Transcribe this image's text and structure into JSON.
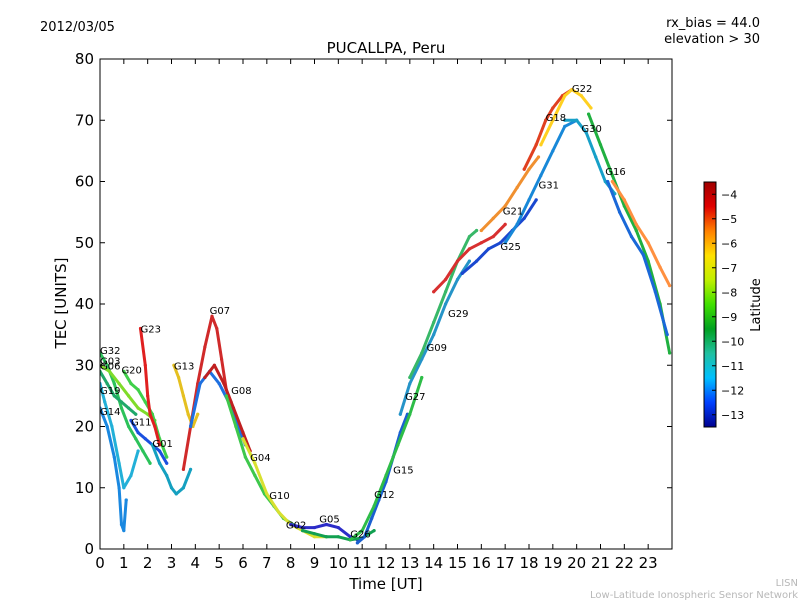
{
  "header": {
    "date": "2012/03/05",
    "rx_bias": "rx_bias = 44.0",
    "elevation": "elevation > 30"
  },
  "footer": {
    "org_short": "LISN",
    "org_long": "Low-Latitude Ionospheric Sensor Network"
  },
  "chart_data": {
    "type": "scatter",
    "title": "PUCALLPA, Peru",
    "xlabel": "Time [UT]",
    "ylabel": "TEC [UNITS]",
    "xlim": [
      0,
      24
    ],
    "ylim": [
      0,
      80
    ],
    "x_ticks": [
      0,
      1,
      2,
      3,
      4,
      5,
      6,
      7,
      8,
      9,
      10,
      11,
      12,
      13,
      14,
      15,
      16,
      17,
      18,
      19,
      20,
      21,
      22,
      23
    ],
    "y_ticks": [
      0,
      10,
      20,
      30,
      40,
      50,
      60,
      70,
      80
    ],
    "grid": false,
    "colorbar": {
      "label": "Latitude",
      "min": -13.5,
      "max": -3.5,
      "ticks": [
        -4,
        -5,
        -6,
        -7,
        -8,
        -9,
        -10,
        -11,
        -12,
        -13
      ],
      "tick_labels": [
        "−4",
        "−5",
        "−6",
        "−7",
        "−8",
        "−9",
        "−10",
        "−11",
        "−12",
        "−13"
      ],
      "colormap": [
        "#00008f",
        "#0040ff",
        "#00c0ff",
        "#20c0a0",
        "#00a020",
        "#40e000",
        "#c0f000",
        "#ffe000",
        "#ff8000",
        "#e00000",
        "#a00000"
      ]
    },
    "series": [
      {
        "name": "G32",
        "label_at": [
          0.0,
          32.5
        ],
        "color": "#2cc25a",
        "points": [
          [
            0.0,
            32
          ],
          [
            0.3,
            30
          ],
          [
            0.6,
            27
          ],
          [
            0.9,
            23
          ],
          [
            1.2,
            20
          ],
          [
            1.5,
            18
          ],
          [
            1.8,
            16
          ],
          [
            2.1,
            14
          ]
        ]
      },
      {
        "name": "G03",
        "label_at": [
          0.0,
          30.8
        ],
        "color": "#7fdc2a",
        "points": [
          [
            0.0,
            30
          ],
          [
            0.4,
            29
          ],
          [
            0.8,
            27
          ],
          [
            1.2,
            25
          ],
          [
            1.6,
            23
          ],
          [
            2.0,
            22
          ],
          [
            2.3,
            21
          ]
        ]
      },
      {
        "name": "G06",
        "label_at": [
          0.0,
          30.0
        ],
        "color": "#1fa86a",
        "points": [
          [
            0.0,
            29
          ],
          [
            0.3,
            27
          ],
          [
            0.6,
            25
          ],
          [
            0.9,
            24
          ],
          [
            1.2,
            23
          ],
          [
            1.5,
            22
          ]
        ]
      },
      {
        "name": "G19",
        "label_at": [
          0.0,
          26.0
        ],
        "color": "#22b0d8",
        "points": [
          [
            0.0,
            27
          ],
          [
            0.2,
            24
          ],
          [
            0.5,
            20
          ],
          [
            0.8,
            14
          ],
          [
            1.0,
            10
          ],
          [
            1.3,
            12
          ],
          [
            1.6,
            16
          ]
        ]
      },
      {
        "name": "G14",
        "label_at": [
          0.0,
          22.5
        ],
        "color": "#1a88e0",
        "points": [
          [
            0.0,
            23
          ],
          [
            0.3,
            20
          ],
          [
            0.6,
            15
          ],
          [
            0.8,
            10
          ],
          [
            0.9,
            4
          ],
          [
            1.0,
            3
          ],
          [
            1.1,
            8
          ]
        ]
      },
      {
        "name": "G20",
        "label_at": [
          0.9,
          29.3
        ],
        "color": "#3fd04a",
        "points": [
          [
            1.0,
            29
          ],
          [
            1.3,
            27
          ],
          [
            1.6,
            26
          ],
          [
            1.9,
            24
          ],
          [
            2.2,
            22
          ],
          [
            2.5,
            18
          ],
          [
            2.8,
            15
          ]
        ]
      },
      {
        "name": "G23",
        "label_at": [
          1.7,
          36.0
        ],
        "color": "#e02020",
        "points": [
          [
            1.7,
            36
          ],
          [
            1.9,
            30
          ],
          [
            2.0,
            25
          ],
          [
            2.1,
            22
          ],
          [
            2.3,
            20
          ],
          [
            2.5,
            17
          ]
        ]
      },
      {
        "name": "G11",
        "label_at": [
          1.3,
          20.8
        ],
        "color": "#1a50e0",
        "points": [
          [
            1.3,
            21
          ],
          [
            1.6,
            19
          ],
          [
            1.9,
            18
          ],
          [
            2.2,
            17
          ],
          [
            2.5,
            16
          ],
          [
            2.8,
            14
          ]
        ]
      },
      {
        "name": "G01",
        "label_at": [
          2.2,
          17.3
        ],
        "color": "#15a0c0",
        "points": [
          [
            2.2,
            17
          ],
          [
            2.5,
            14
          ],
          [
            2.8,
            12
          ],
          [
            3.0,
            10
          ],
          [
            3.2,
            9
          ],
          [
            3.5,
            10
          ],
          [
            3.8,
            13
          ]
        ]
      },
      {
        "name": "G13",
        "label_at": [
          3.1,
          30.0
        ],
        "color": "#e5c020",
        "points": [
          [
            3.1,
            30
          ],
          [
            3.3,
            28
          ],
          [
            3.5,
            25
          ],
          [
            3.7,
            22
          ],
          [
            3.9,
            20
          ],
          [
            4.1,
            22
          ]
        ]
      },
      {
        "name": "G07",
        "label_at": [
          4.6,
          39.0
        ],
        "color": "#d02a2a",
        "points": [
          [
            3.5,
            13
          ],
          [
            3.8,
            20
          ],
          [
            4.1,
            27
          ],
          [
            4.4,
            33
          ],
          [
            4.7,
            38
          ],
          [
            4.9,
            36
          ],
          [
            5.1,
            31
          ],
          [
            5.3,
            26
          ],
          [
            5.5,
            24
          ]
        ]
      },
      {
        "name": "G08",
        "label_at": [
          5.5,
          26.0
        ],
        "color": "#1e70e0",
        "points": [
          [
            3.8,
            20
          ],
          [
            4.2,
            27
          ],
          [
            4.6,
            29
          ],
          [
            5.0,
            27
          ],
          [
            5.4,
            24
          ],
          [
            5.8,
            20
          ],
          [
            6.1,
            17
          ]
        ]
      },
      {
        "name": "G04",
        "label_at": [
          6.3,
          15.0
        ],
        "color": "#c02020",
        "points": [
          [
            4.4,
            28
          ],
          [
            4.8,
            30
          ],
          [
            5.2,
            27
          ],
          [
            5.6,
            23
          ],
          [
            6.0,
            19
          ],
          [
            6.3,
            16
          ]
        ]
      },
      {
        "name": "G10",
        "label_at": [
          7.1,
          8.8
        ],
        "color": "#3ec84c",
        "points": [
          [
            5.3,
            25
          ],
          [
            5.7,
            20
          ],
          [
            6.1,
            15
          ],
          [
            6.5,
            12
          ],
          [
            6.9,
            9
          ],
          [
            7.3,
            7
          ],
          [
            7.7,
            5
          ],
          [
            8.1,
            4
          ]
        ]
      },
      {
        "name": "G02",
        "label_at": [
          7.8,
          4.0
        ],
        "color": "#d8e030",
        "points": [
          [
            6.0,
            18
          ],
          [
            6.5,
            14
          ],
          [
            7.0,
            9
          ],
          [
            7.5,
            6
          ],
          [
            8.0,
            4
          ],
          [
            8.5,
            3
          ],
          [
            9.0,
            2
          ],
          [
            9.5,
            2
          ]
        ]
      },
      {
        "name": "G05",
        "label_at": [
          9.2,
          5.0
        ],
        "color": "#2c2cc8",
        "points": [
          [
            8.0,
            4
          ],
          [
            8.5,
            3.5
          ],
          [
            9.0,
            3.5
          ],
          [
            9.5,
            4
          ],
          [
            10.0,
            3.5
          ],
          [
            10.5,
            2
          ],
          [
            10.8,
            1.5
          ]
        ]
      },
      {
        "name": "G26",
        "label_at": [
          10.5,
          2.5
        ],
        "color": "#11a050",
        "points": [
          [
            8.5,
            3
          ],
          [
            9.0,
            2.5
          ],
          [
            9.5,
            2
          ],
          [
            10.0,
            2
          ],
          [
            10.5,
            1.5
          ],
          [
            11.0,
            1.8
          ],
          [
            11.5,
            3
          ]
        ]
      },
      {
        "name": "G12",
        "label_at": [
          11.5,
          9.0
        ],
        "color": "#1a60d0",
        "points": [
          [
            10.8,
            1
          ],
          [
            11.1,
            2
          ],
          [
            11.4,
            5
          ],
          [
            11.7,
            8
          ],
          [
            12.0,
            11
          ],
          [
            12.3,
            15
          ],
          [
            12.6,
            19
          ],
          [
            12.9,
            22
          ]
        ]
      },
      {
        "name": "G15",
        "label_at": [
          12.3,
          13.0
        ],
        "color": "#2ebd48",
        "points": [
          [
            10.5,
            1.5
          ],
          [
            11.0,
            3
          ],
          [
            11.5,
            7
          ],
          [
            12.0,
            12
          ],
          [
            12.5,
            17
          ],
          [
            13.0,
            22
          ],
          [
            13.5,
            28
          ]
        ]
      },
      {
        "name": "G27",
        "label_at": [
          12.8,
          25.0
        ],
        "color": "#2594c8",
        "points": [
          [
            12.6,
            22
          ],
          [
            13.0,
            27
          ],
          [
            13.5,
            31
          ],
          [
            14.0,
            35
          ],
          [
            14.5,
            40
          ],
          [
            15.0,
            44
          ],
          [
            15.5,
            47
          ]
        ]
      },
      {
        "name": "G09",
        "label_at": [
          13.7,
          33.0
        ],
        "color": "#38b868",
        "points": [
          [
            13.0,
            28
          ],
          [
            13.5,
            32
          ],
          [
            14.0,
            37
          ],
          [
            14.5,
            42
          ],
          [
            15.0,
            47
          ],
          [
            15.5,
            51
          ],
          [
            15.8,
            52
          ]
        ]
      },
      {
        "name": "G29",
        "label_at": [
          14.6,
          38.5
        ],
        "color": "#d83030",
        "points": [
          [
            14.0,
            42
          ],
          [
            14.5,
            44
          ],
          [
            15.0,
            47
          ],
          [
            15.5,
            49
          ],
          [
            16.0,
            50
          ],
          [
            16.5,
            51
          ],
          [
            17.0,
            53
          ]
        ]
      },
      {
        "name": "G25",
        "label_at": [
          16.8,
          49.5
        ],
        "color": "#1a48d0",
        "points": [
          [
            15.2,
            45
          ],
          [
            15.8,
            47
          ],
          [
            16.3,
            49
          ],
          [
            16.8,
            50
          ],
          [
            17.3,
            52
          ],
          [
            17.8,
            54
          ],
          [
            18.3,
            57
          ]
        ]
      },
      {
        "name": "G21",
        "label_at": [
          16.9,
          55.3
        ],
        "color": "#f09030",
        "points": [
          [
            16.0,
            52
          ],
          [
            16.5,
            54
          ],
          [
            17.0,
            56
          ],
          [
            17.5,
            59
          ],
          [
            18.0,
            62
          ],
          [
            18.4,
            64
          ]
        ]
      },
      {
        "name": "G31",
        "label_at": [
          18.4,
          59.5
        ],
        "color": "#1888d8",
        "points": [
          [
            17.0,
            50
          ],
          [
            17.5,
            53
          ],
          [
            18.0,
            57
          ],
          [
            18.5,
            61
          ],
          [
            19.0,
            65
          ],
          [
            19.5,
            69
          ],
          [
            20.0,
            70
          ]
        ]
      },
      {
        "name": "G18",
        "label_at": [
          18.7,
          70.5
        ],
        "color": "#e04020",
        "points": [
          [
            17.8,
            62
          ],
          [
            18.3,
            66
          ],
          [
            18.7,
            70
          ],
          [
            19.0,
            72
          ],
          [
            19.4,
            74
          ],
          [
            19.8,
            75
          ]
        ]
      },
      {
        "name": "G22",
        "label_at": [
          19.8,
          75.3
        ],
        "color": "#ffd020",
        "points": [
          [
            18.5,
            66
          ],
          [
            19.0,
            70
          ],
          [
            19.5,
            74
          ],
          [
            19.8,
            75
          ],
          [
            20.2,
            74
          ],
          [
            20.6,
            72
          ]
        ]
      },
      {
        "name": "G30",
        "label_at": [
          20.2,
          68.7
        ],
        "color": "#17a0c8",
        "points": [
          [
            19.5,
            70
          ],
          [
            20.0,
            70
          ],
          [
            20.4,
            68
          ],
          [
            20.8,
            64
          ],
          [
            21.2,
            60
          ],
          [
            21.6,
            58
          ]
        ]
      },
      {
        "name": "G16",
        "label_at": [
          21.2,
          61.7
        ],
        "color": "#20b040",
        "points": [
          [
            20.5,
            71
          ],
          [
            21.0,
            66
          ],
          [
            21.5,
            61
          ],
          [
            22.0,
            56
          ],
          [
            22.5,
            52
          ],
          [
            23.0,
            47
          ],
          [
            23.5,
            40
          ],
          [
            23.9,
            32
          ]
        ]
      },
      {
        "name": "",
        "label_at": null,
        "color": "#ff9040",
        "points": [
          [
            21.5,
            60
          ],
          [
            22.0,
            57
          ],
          [
            22.5,
            53
          ],
          [
            23.0,
            50
          ],
          [
            23.5,
            46
          ],
          [
            23.9,
            43
          ]
        ]
      },
      {
        "name": "",
        "label_at": null,
        "color": "#1a68d8",
        "points": [
          [
            21.3,
            60
          ],
          [
            21.8,
            55
          ],
          [
            22.3,
            51
          ],
          [
            22.8,
            48
          ],
          [
            23.3,
            42
          ],
          [
            23.8,
            35
          ]
        ]
      }
    ]
  }
}
